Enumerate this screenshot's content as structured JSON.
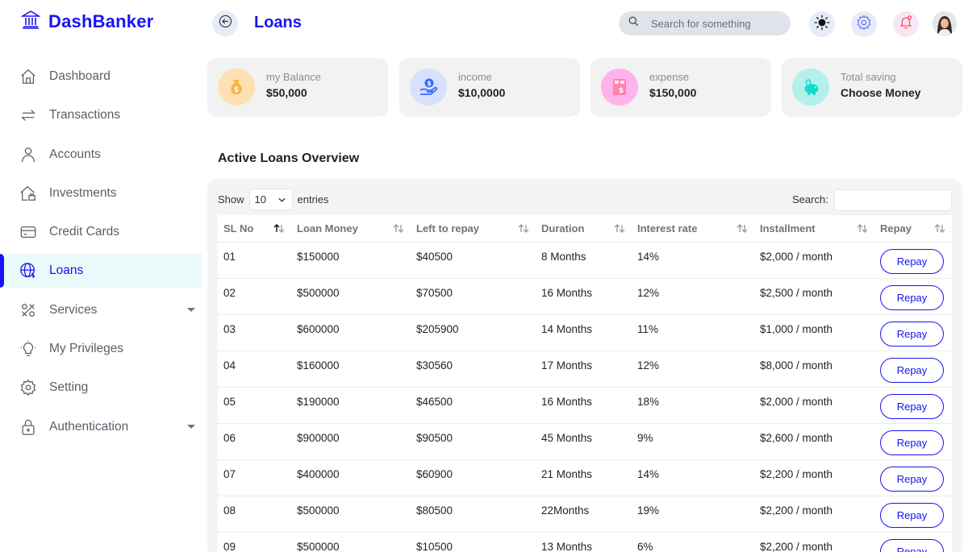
{
  "brand": {
    "name": "DashBanker"
  },
  "header": {
    "title": "Loans",
    "search_placeholder": "Search for something"
  },
  "sidebar": {
    "items": [
      {
        "label": "Dashboard",
        "icon": "home-icon"
      },
      {
        "label": "Transactions",
        "icon": "transfer-icon"
      },
      {
        "label": "Accounts",
        "icon": "user-icon"
      },
      {
        "label": "Investments",
        "icon": "investment-icon"
      },
      {
        "label": "Credit Cards",
        "icon": "credit-card-icon"
      },
      {
        "label": "Loans",
        "icon": "loan-icon",
        "active": true
      },
      {
        "label": "Services",
        "icon": "services-icon",
        "has_submenu": true
      },
      {
        "label": "My Privileges",
        "icon": "lightbulb-icon"
      },
      {
        "label": "Setting",
        "icon": "gear-icon"
      },
      {
        "label": "Authentication",
        "icon": "lock-icon",
        "has_submenu": true
      }
    ]
  },
  "cards": [
    {
      "label": "my Balance",
      "value": "$50,000",
      "icon": "money-bag-icon",
      "color": "#FFE0B2"
    },
    {
      "label": "income",
      "value": "$10,0000",
      "icon": "hand-coin-icon",
      "color": "#D8E0FF"
    },
    {
      "label": "expense",
      "value": "$150,000",
      "icon": "bill-icon",
      "color": "#FFB3EC"
    },
    {
      "label": "Total saving",
      "value": "Choose Money",
      "icon": "piggy-bank-icon",
      "color": "#B4F0EA"
    }
  ],
  "section_title": "Active Loans Overview",
  "table_controls": {
    "show_label": "Show",
    "entries_value": "10",
    "entries_label": "entries",
    "search_label": "Search:"
  },
  "table": {
    "columns": [
      "SL No",
      "Loan Money",
      "Left to repay",
      "Duration",
      "Interest rate",
      "Installment",
      "Repay"
    ],
    "repay_label": "Repay",
    "rows": [
      [
        "01",
        "$150000",
        "$40500",
        "8 Months",
        "14%",
        "$2,000 / month"
      ],
      [
        "02",
        "$500000",
        "$70500",
        "16 Months",
        "12%",
        "$2,500 / month"
      ],
      [
        "03",
        "$600000",
        "$205900",
        "14 Months",
        "11%",
        "$1,000 / month"
      ],
      [
        "04",
        "$160000",
        "$30560",
        "17 Months",
        "12%",
        "$8,000 / month"
      ],
      [
        "05",
        "$190000",
        "$46500",
        "16 Months",
        "18%",
        "$2,000 / month"
      ],
      [
        "06",
        "$900000",
        "$90500",
        "45 Months",
        "9%",
        "$2,600 / month"
      ],
      [
        "07",
        "$400000",
        "$60900",
        "21 Months",
        "14%",
        "$2,200 / month"
      ],
      [
        "08",
        "$500000",
        "$80500",
        "22Months",
        "19%",
        "$2,200 / month"
      ],
      [
        "09",
        "$500000",
        "$10500",
        "13 Months",
        "6%",
        "$2,200 / month"
      ]
    ]
  },
  "colors": {
    "accent": "#1814F3",
    "active_bg": "#EAF9FA"
  }
}
